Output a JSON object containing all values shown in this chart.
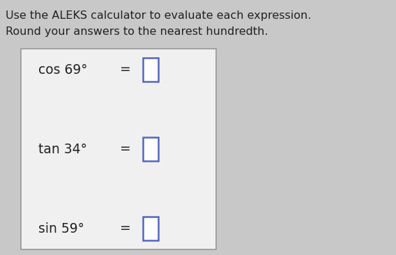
{
  "title_line1": "Use the ALEKS calculator to evaluate each expression.",
  "title_line2": "Round your answers to the nearest hundredth.",
  "expressions": [
    {
      "label": "cos 69°",
      "eq": "="
    },
    {
      "label": "tan 34°",
      "eq": "="
    },
    {
      "label": "sin 59°",
      "eq": "="
    }
  ],
  "bg_color": "#c8c8c8",
  "box_bg_color": "#f0f0f0",
  "box_border_color": "#999999",
  "input_box_color": "#ffffff",
  "input_box_border_color": "#5566bb",
  "text_color": "#222222",
  "title_fontsize": 11.5,
  "expr_fontsize": 13.5,
  "fig_width": 5.68,
  "fig_height": 3.66,
  "dpi": 100
}
